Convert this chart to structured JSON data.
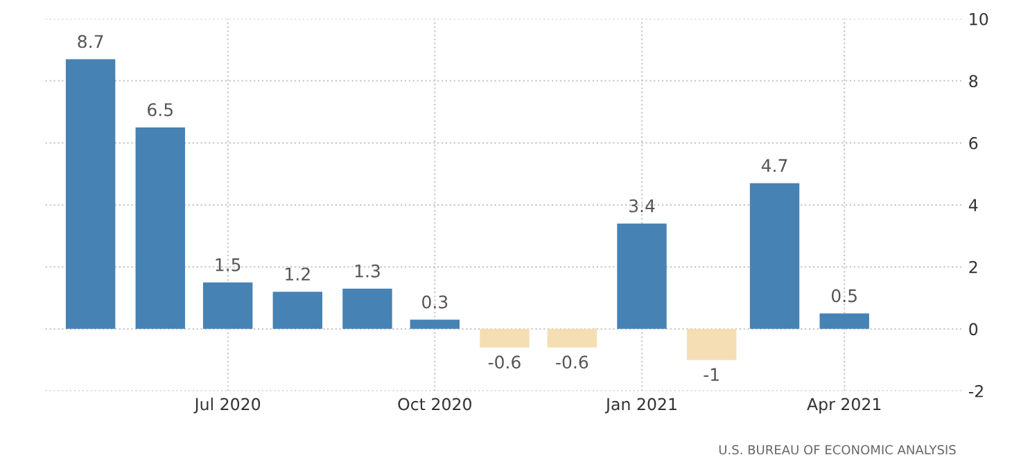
{
  "chart_data": {
    "type": "bar",
    "x": [
      "2020-05",
      "2020-06",
      "2020-07",
      "2020-08",
      "2020-09",
      "2020-10",
      "2020-11",
      "2020-12",
      "2021-01",
      "2021-02",
      "2021-03",
      "2021-04"
    ],
    "values": [
      8.7,
      6.5,
      1.5,
      1.2,
      1.3,
      0.3,
      -0.6,
      -0.6,
      3.4,
      -1,
      4.7,
      0.5
    ],
    "colors": [
      "#4682b4",
      "#4682b4",
      "#4682b4",
      "#4682b4",
      "#4682b4",
      "#4682b4",
      "#f5deb3",
      "#f5deb3",
      "#4682b4",
      "#f5deb3",
      "#4682b4",
      "#4682b4"
    ],
    "xlim": [
      "2020-04-11",
      "2021-05-23"
    ],
    "xticks": [
      {
        "value": "2020-07",
        "label": "Jul 2020"
      },
      {
        "value": "2020-10",
        "label": "Oct 2020"
      },
      {
        "value": "2021-01",
        "label": "Jan 2021"
      },
      {
        "value": "2021-04",
        "label": "Apr 2021"
      }
    ],
    "ylim": [
      -2,
      10
    ],
    "yticks": [
      -2,
      0,
      2,
      4,
      6,
      8,
      10
    ],
    "grid": true,
    "data_labels": true,
    "annotations": [
      "U.S. BUREAU OF ECONOMIC ANALYSIS"
    ]
  }
}
